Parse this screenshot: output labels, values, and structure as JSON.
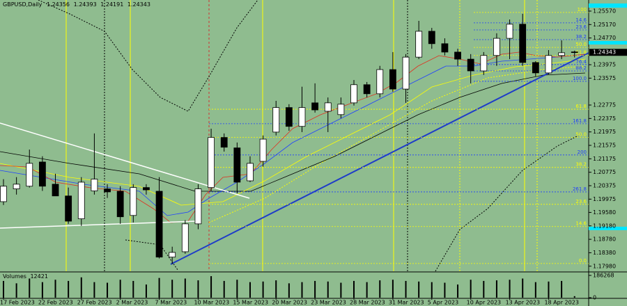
{
  "chart_data": {
    "type": "candlestick",
    "title": "GBPUSD,Daily",
    "categories": [
      "17 Feb 2023",
      null,
      null,
      "22 Feb 2023",
      null,
      null,
      "27 Feb 2023",
      null,
      null,
      "2 Mar 2023",
      null,
      null,
      "7 Mar 2023",
      null,
      null,
      "10 Mar 2023",
      null,
      null,
      "15 Mar 2023",
      null,
      null,
      "20 Mar 2023",
      null,
      null,
      "23 Mar 2023",
      null,
      null,
      "28 Mar 2023",
      null,
      null,
      "31 Mar 2023",
      null,
      null,
      "5 Apr 2023",
      null,
      null,
      "10 Apr 2023",
      null,
      null,
      "13 Apr 2023",
      null,
      null,
      "18 Apr 2023",
      null,
      null
    ],
    "open": [
      1.199,
      1.2028,
      1.2036,
      1.2108,
      1.2042,
      1.2007,
      1.1939,
      1.2022,
      1.2028,
      1.2021,
      1.1949,
      1.2032,
      1.2021,
      1.1825,
      1.1841,
      1.1924,
      1.2032,
      1.2181,
      1.215,
      1.2052,
      1.211,
      1.2197,
      1.227,
      1.2214,
      1.2284,
      1.2259,
      1.2249,
      1.2284,
      1.2338,
      1.2311,
      1.2383,
      1.2325,
      1.242,
      1.2497,
      1.246,
      1.2435,
      1.2414,
      1.2379,
      1.2425,
      1.2476,
      1.2518,
      1.2404,
      1.2373,
      1.2425,
      1.24356
    ],
    "high": [
      1.2057,
      1.2063,
      1.2145,
      1.2125,
      1.2073,
      1.2032,
      1.2063,
      1.2193,
      1.2042,
      1.2036,
      1.2042,
      1.2042,
      1.2063,
      1.1856,
      1.1935,
      1.2042,
      1.2207,
      1.2193,
      1.2166,
      1.2125,
      1.2187,
      1.229,
      1.228,
      1.2332,
      1.2342,
      1.23,
      1.23,
      1.2352,
      1.2346,
      1.2394,
      1.2435,
      1.2429,
      1.2528,
      1.2507,
      1.2476,
      1.2445,
      1.2429,
      1.2435,
      1.2491,
      1.2532,
      1.2549,
      1.2408,
      1.2441,
      1.247,
      1.24393
    ],
    "low": [
      1.198,
      1.2011,
      1.2032,
      1.2022,
      1.2011,
      1.1924,
      1.1918,
      1.2011,
      1.2001,
      1.1924,
      1.1928,
      1.2011,
      1.1821,
      1.1804,
      1.1835,
      1.1908,
      1.2021,
      1.2139,
      1.2015,
      1.2048,
      1.2094,
      1.2187,
      1.2201,
      1.2197,
      1.2255,
      1.2197,
      1.2238,
      1.2276,
      1.23,
      1.23,
      1.2317,
      1.2284,
      1.2414,
      1.2445,
      1.2425,
      1.2394,
      1.2342,
      1.2367,
      1.2394,
      1.2414,
      1.2394,
      1.2363,
      1.2369,
      1.2414,
      1.24191
    ],
    "close": [
      1.2036,
      1.2042,
      1.2104,
      1.2036,
      1.2007,
      1.1932,
      1.2048,
      1.2057,
      1.2019,
      1.1945,
      1.2032,
      1.2025,
      1.1825,
      1.1839,
      1.1924,
      1.2028,
      1.2181,
      1.2152,
      1.2048,
      1.2104,
      1.2176,
      1.227,
      1.2214,
      1.227,
      1.2263,
      1.2284,
      1.228,
      1.2338,
      1.2311,
      1.2383,
      1.2325,
      1.242,
      1.2497,
      1.246,
      1.2435,
      1.2414,
      1.2379,
      1.2425,
      1.2476,
      1.2518,
      1.2404,
      1.2373,
      1.2425,
      1.2433,
      1.24343
    ],
    "ylim": [
      1.1783,
      1.259
    ],
    "yticks": [
      {
        "value": 1.2557,
        "label": "1.25570"
      },
      {
        "value": 1.2517,
        "label": "1.25170"
      },
      {
        "value": 1.2477,
        "label": "1.24770"
      },
      1.23975,
      1.23575,
      1.22775,
      1.22375,
      1.21975,
      1.21575,
      1.21175,
      1.20775,
      1.20375,
      1.19975,
      {
        "value": 1.1958,
        "label": "1.19580"
      },
      {
        "value": 1.1918,
        "label": "1.19180"
      },
      {
        "value": 1.1878,
        "label": "1.18780"
      },
      {
        "value": 1.1838,
        "label": "1.18380"
      },
      {
        "value": 1.1798,
        "label": "1.17980"
      }
    ],
    "volume_label": "Volumes",
    "volumes": [
      140000,
      120000,
      160000,
      130000,
      150000,
      140000,
      170000,
      130000,
      125000,
      150000,
      140000,
      110000,
      165000,
      150000,
      160000,
      145000,
      180000,
      140000,
      150000,
      130000,
      135000,
      145000,
      120000,
      130000,
      140000,
      135000,
      125000,
      140000,
      130000,
      145000,
      150000,
      140000,
      135000,
      130000,
      125000,
      110000,
      150000,
      140000,
      145000,
      150000,
      160000,
      130000,
      135000,
      140000,
      12421
    ],
    "vlim": [
      0,
      186268
    ],
    "vticks": [
      186268,
      0
    ],
    "fib_levels": [
      {
        "label": "100",
        "price": 1.2553,
        "color": "#ffff00"
      },
      {
        "label": "14.6",
        "price": 1.2522,
        "color": "#1e3cff"
      },
      {
        "label": "23.6",
        "price": 1.2501,
        "color": "#1e3cff"
      },
      {
        "label": "38.2",
        "price": 1.2472,
        "color": "#1e3cff"
      },
      {
        "label": "50.0",
        "price": 1.2449,
        "color": "#ffff00"
      },
      {
        "label": "61.8",
        "price": 1.2425,
        "color": "#ffff00"
      },
      {
        "label": "76.4",
        "price": 1.2398,
        "color": "#1e3cff"
      },
      {
        "label": "88.2",
        "price": 1.2379,
        "color": "#1e3cff"
      },
      {
        "label": "100.0",
        "price": 1.2348,
        "color": "#1e3cff"
      },
      {
        "label": "61.8",
        "price": 1.2265,
        "color": "#ffff00"
      },
      {
        "label": "161.8",
        "price": 1.2222,
        "color": "#1e3cff"
      },
      {
        "label": "50.0",
        "price": 1.2181,
        "color": "#ffff00"
      },
      {
        "label": "200",
        "price": 1.2129,
        "color": "#1e3cff"
      },
      {
        "label": "38.2",
        "price": 1.2092,
        "color": "#ffff00"
      },
      {
        "label": "261.8",
        "price": 1.2019,
        "color": "#1e3cff"
      },
      {
        "label": "23.6",
        "price": 1.1982,
        "color": "#ffff00"
      },
      {
        "label": "14.6",
        "price": 1.1916,
        "color": "#ffff00"
      },
      {
        "label": "0.0",
        "price": 1.1806,
        "color": "#ffff00"
      }
    ],
    "up_color": "#ffffff",
    "down_color": "#000000"
  }
}
